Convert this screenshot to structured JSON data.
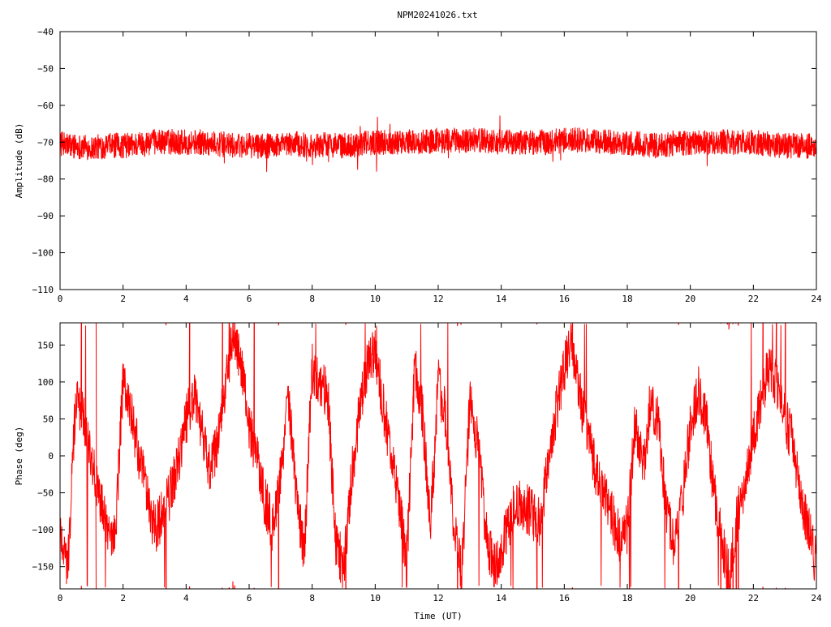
{
  "title": "NPM20241026.txt",
  "colors": {
    "trace": "#ff0000",
    "axes": "#000000",
    "background": "#ffffff"
  },
  "chart_data": [
    {
      "type": "line",
      "panel": "amplitude",
      "ylabel": "Amplitude (dB)",
      "xlabel": "",
      "xlim": [
        0,
        24
      ],
      "ylim": [
        -110,
        -40
      ],
      "xticks": [
        0,
        2,
        4,
        6,
        8,
        10,
        12,
        14,
        16,
        18,
        20,
        22,
        24
      ],
      "yticks": [
        -110,
        -100,
        -90,
        -80,
        -70,
        -60,
        -50,
        -40
      ],
      "grid": false,
      "series": [
        {
          "x": [
            0,
            0.5,
            1,
            1.5,
            2,
            2.5,
            3,
            3.5,
            4,
            4.5,
            5,
            5.5,
            6,
            6.5,
            7,
            7.5,
            8,
            8.5,
            9,
            9.5,
            10,
            10.5,
            11,
            11.5,
            12,
            12.5,
            13,
            13.5,
            14,
            14.5,
            15,
            15.5,
            16,
            16.5,
            17,
            17.5,
            18,
            18.5,
            19,
            19.5,
            20,
            20.5,
            21,
            21.5,
            22,
            22.5,
            23,
            23.5,
            24
          ],
          "y": [
            -70.5,
            -71,
            -71.5,
            -71,
            -71,
            -70.5,
            -70,
            -70,
            -70,
            -70,
            -70.5,
            -71,
            -71,
            -71,
            -71,
            -70.5,
            -71,
            -70.5,
            -71,
            -70.5,
            -70,
            -70,
            -70,
            -70,
            -69.5,
            -69.5,
            -69.5,
            -69.5,
            -70,
            -70,
            -70,
            -70,
            -69.5,
            -69.5,
            -70,
            -70,
            -70.5,
            -70.5,
            -71,
            -70.5,
            -70,
            -70,
            -70,
            -70,
            -70,
            -70.5,
            -71,
            -71,
            -71
          ],
          "spread": 3.5
        }
      ]
    },
    {
      "type": "line",
      "panel": "phase",
      "ylabel": "Phase (deg)",
      "xlabel": "Time (UT)",
      "xlim": [
        0,
        24
      ],
      "ylim": [
        -180,
        180
      ],
      "xticks": [
        0,
        2,
        4,
        6,
        8,
        10,
        12,
        14,
        16,
        18,
        20,
        22,
        24
      ],
      "yticks": [
        -150,
        -100,
        -50,
        0,
        50,
        100,
        150
      ],
      "grid": false,
      "series": [
        {
          "x": [
            0,
            0.25,
            0.5,
            0.75,
            1,
            1.25,
            1.5,
            1.75,
            2,
            2.25,
            2.5,
            2.75,
            3,
            3.25,
            3.5,
            3.75,
            4,
            4.25,
            4.5,
            4.75,
            5,
            5.25,
            5.5,
            5.75,
            6,
            6.25,
            6.5,
            6.75,
            7,
            7.25,
            7.5,
            7.75,
            8,
            8.25,
            8.5,
            8.75,
            9,
            9.25,
            9.5,
            9.75,
            10,
            10.25,
            10.5,
            10.75,
            11,
            11.25,
            11.5,
            11.75,
            12,
            12.25,
            12.5,
            12.75,
            13,
            13.25,
            13.5,
            13.75,
            14,
            14.25,
            14.5,
            14.75,
            15,
            15.25,
            15.5,
            15.75,
            16,
            16.25,
            16.5,
            16.75,
            17,
            17.25,
            17.5,
            17.75,
            18,
            18.25,
            18.5,
            18.75,
            19,
            19.25,
            19.5,
            19.75,
            20,
            20.25,
            20.5,
            20.75,
            21,
            21.25,
            21.5,
            21.75,
            22,
            22.25,
            22.5,
            22.75,
            23,
            23.25,
            23.5,
            23.75,
            24
          ],
          "y": [
            -100,
            -150,
            80,
            50,
            0,
            -60,
            -100,
            -110,
            100,
            60,
            0,
            -50,
            -100,
            -80,
            -50,
            -10,
            50,
            80,
            30,
            -20,
            20,
            100,
            160,
            120,
            40,
            0,
            -60,
            -100,
            -20,
            80,
            -60,
            -130,
            120,
            100,
            80,
            -120,
            -150,
            -30,
            60,
            120,
            140,
            70,
            0,
            -60,
            -150,
            120,
            60,
            -100,
            100,
            50,
            -100,
            -160,
            70,
            20,
            -100,
            -150,
            -130,
            -90,
            -60,
            -70,
            -80,
            -90,
            0,
            60,
            120,
            150,
            80,
            30,
            -20,
            -50,
            -80,
            -110,
            -100,
            50,
            -20,
            80,
            40,
            -80,
            -120,
            -60,
            40,
            90,
            50,
            -50,
            -120,
            -160,
            -80,
            -40,
            20,
            80,
            120,
            100,
            50,
            20,
            -60,
            -100,
            -150
          ]
        }
      ]
    }
  ]
}
